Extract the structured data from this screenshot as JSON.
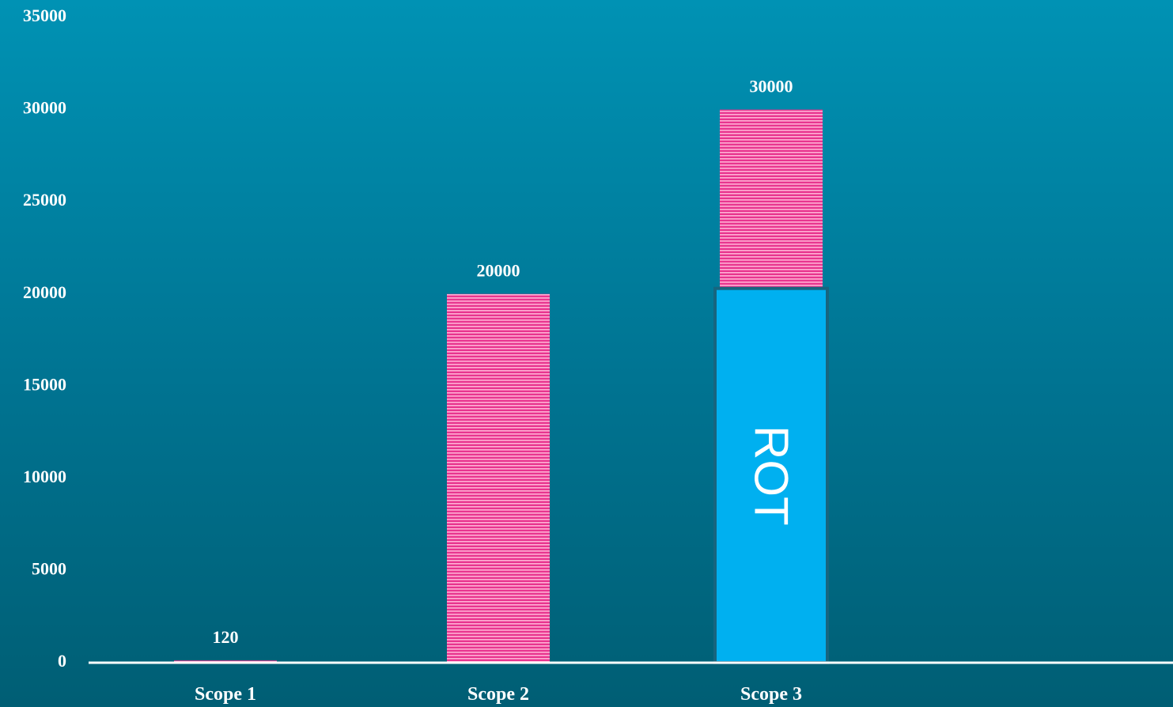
{
  "chart_data": {
    "type": "bar",
    "categories": [
      "Scope 1",
      "Scope 2",
      "Scope 3"
    ],
    "values": [
      120,
      20000,
      30000
    ],
    "data_labels": [
      "120",
      "20000",
      "30000"
    ],
    "yticks": [
      "0",
      "5000",
      "10000",
      "15000",
      "20000",
      "25000",
      "30000",
      "35000"
    ],
    "ylim": [
      0,
      35000
    ],
    "grid": false,
    "title": "",
    "xlabel": "",
    "ylabel": "",
    "annotation": {
      "text": "ROT",
      "category": "Scope 3",
      "range": [
        0,
        20300
      ],
      "fill": "#00b0f0",
      "stroke": "#17657f"
    },
    "colors": {
      "bar": "#e8358f",
      "bar_stripe": "#ffb0d4",
      "axis": "#ffffff",
      "text": "#ffffff"
    }
  }
}
